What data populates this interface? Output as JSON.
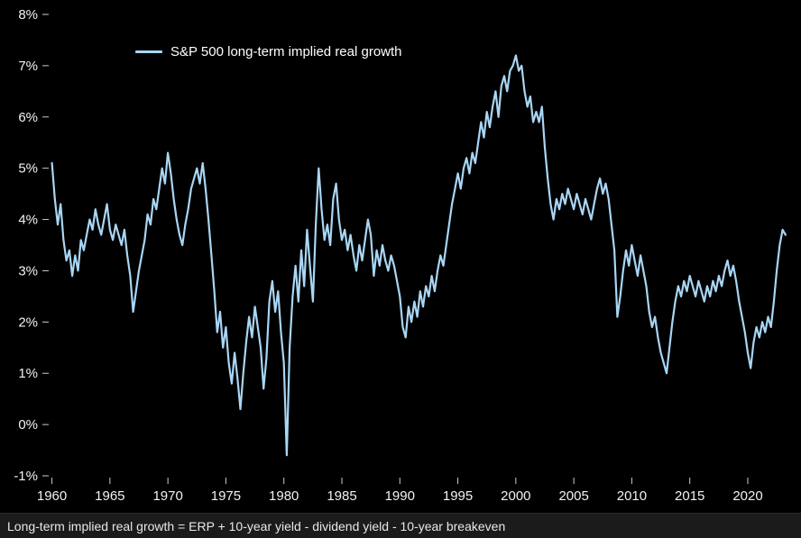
{
  "legend": {
    "label": "S&P 500 long-term implied real growth"
  },
  "footer": {
    "text": "Long-term implied real growth = ERP + 10-year yield - dividend yield - 10-year breakeven"
  },
  "chart_data": {
    "type": "line",
    "title": "",
    "xlabel": "",
    "ylabel": "",
    "legend_entries": [
      "S&P 500 long-term implied real growth"
    ],
    "legend_position": "top-left",
    "grid": false,
    "background": "#000000",
    "line_color": "#a9d6f5",
    "tick_color": "#cccccc",
    "xlim": [
      1959.8,
      2023.5
    ],
    "ylim": [
      -1,
      8
    ],
    "x_ticks": [
      1960,
      1965,
      1970,
      1975,
      1980,
      1985,
      1990,
      1995,
      2000,
      2005,
      2010,
      2015,
      2020
    ],
    "y_ticks": [
      {
        "value": 8,
        "label": "8%"
      },
      {
        "value": 7,
        "label": "7%"
      },
      {
        "value": 6,
        "label": "6%"
      },
      {
        "value": 5,
        "label": "5%"
      },
      {
        "value": 4,
        "label": "4%"
      },
      {
        "value": 3,
        "label": "3%"
      },
      {
        "value": 2,
        "label": "2%"
      },
      {
        "value": 1,
        "label": "1%"
      },
      {
        "value": 0,
        "label": "0%"
      },
      {
        "value": -1,
        "label": "-1%"
      }
    ],
    "series": [
      {
        "name": "S&P 500 long-term implied real growth",
        "points": [
          [
            1960.0,
            5.1
          ],
          [
            1960.25,
            4.4
          ],
          [
            1960.5,
            3.9
          ],
          [
            1960.75,
            4.3
          ],
          [
            1961.0,
            3.6
          ],
          [
            1961.25,
            3.2
          ],
          [
            1961.5,
            3.4
          ],
          [
            1961.75,
            2.9
          ],
          [
            1962.0,
            3.3
          ],
          [
            1962.25,
            3.0
          ],
          [
            1962.5,
            3.6
          ],
          [
            1962.75,
            3.4
          ],
          [
            1963.0,
            3.7
          ],
          [
            1963.25,
            4.0
          ],
          [
            1963.5,
            3.8
          ],
          [
            1963.75,
            4.2
          ],
          [
            1964.0,
            3.9
          ],
          [
            1964.25,
            3.7
          ],
          [
            1964.5,
            4.0
          ],
          [
            1964.75,
            4.3
          ],
          [
            1965.0,
            3.8
          ],
          [
            1965.25,
            3.6
          ],
          [
            1965.5,
            3.9
          ],
          [
            1965.75,
            3.7
          ],
          [
            1966.0,
            3.5
          ],
          [
            1966.25,
            3.8
          ],
          [
            1966.5,
            3.3
          ],
          [
            1966.75,
            2.9
          ],
          [
            1967.0,
            2.2
          ],
          [
            1967.25,
            2.6
          ],
          [
            1967.5,
            3.0
          ],
          [
            1967.75,
            3.3
          ],
          [
            1968.0,
            3.6
          ],
          [
            1968.25,
            4.1
          ],
          [
            1968.5,
            3.9
          ],
          [
            1968.75,
            4.4
          ],
          [
            1969.0,
            4.2
          ],
          [
            1969.25,
            4.6
          ],
          [
            1969.5,
            5.0
          ],
          [
            1969.75,
            4.7
          ],
          [
            1970.0,
            5.3
          ],
          [
            1970.25,
            4.9
          ],
          [
            1970.5,
            4.4
          ],
          [
            1970.75,
            4.0
          ],
          [
            1971.0,
            3.7
          ],
          [
            1971.25,
            3.5
          ],
          [
            1971.5,
            3.9
          ],
          [
            1971.75,
            4.2
          ],
          [
            1972.0,
            4.6
          ],
          [
            1972.25,
            4.8
          ],
          [
            1972.5,
            5.0
          ],
          [
            1972.75,
            4.7
          ],
          [
            1973.0,
            5.1
          ],
          [
            1973.25,
            4.6
          ],
          [
            1973.5,
            4.0
          ],
          [
            1973.75,
            3.3
          ],
          [
            1974.0,
            2.6
          ],
          [
            1974.25,
            1.8
          ],
          [
            1974.5,
            2.2
          ],
          [
            1974.75,
            1.5
          ],
          [
            1975.0,
            1.9
          ],
          [
            1975.25,
            1.2
          ],
          [
            1975.5,
            0.8
          ],
          [
            1975.75,
            1.4
          ],
          [
            1976.0,
            0.9
          ],
          [
            1976.25,
            0.3
          ],
          [
            1976.5,
            1.0
          ],
          [
            1976.75,
            1.6
          ],
          [
            1977.0,
            2.1
          ],
          [
            1977.25,
            1.7
          ],
          [
            1977.5,
            2.3
          ],
          [
            1977.75,
            1.9
          ],
          [
            1978.0,
            1.5
          ],
          [
            1978.25,
            0.7
          ],
          [
            1978.5,
            1.3
          ],
          [
            1978.75,
            2.4
          ],
          [
            1979.0,
            2.8
          ],
          [
            1979.25,
            2.2
          ],
          [
            1979.5,
            2.6
          ],
          [
            1979.75,
            1.8
          ],
          [
            1980.0,
            1.2
          ],
          [
            1980.25,
            -0.6
          ],
          [
            1980.5,
            1.5
          ],
          [
            1980.75,
            2.5
          ],
          [
            1981.0,
            3.1
          ],
          [
            1981.25,
            2.4
          ],
          [
            1981.5,
            3.4
          ],
          [
            1981.75,
            2.7
          ],
          [
            1982.0,
            3.8
          ],
          [
            1982.25,
            3.1
          ],
          [
            1982.5,
            2.4
          ],
          [
            1982.75,
            3.9
          ],
          [
            1983.0,
            5.0
          ],
          [
            1983.25,
            4.2
          ],
          [
            1983.5,
            3.6
          ],
          [
            1983.75,
            3.9
          ],
          [
            1984.0,
            3.5
          ],
          [
            1984.25,
            4.4
          ],
          [
            1984.5,
            4.7
          ],
          [
            1984.75,
            4.0
          ],
          [
            1985.0,
            3.6
          ],
          [
            1985.25,
            3.8
          ],
          [
            1985.5,
            3.4
          ],
          [
            1985.75,
            3.7
          ],
          [
            1986.0,
            3.3
          ],
          [
            1986.25,
            3.0
          ],
          [
            1986.5,
            3.5
          ],
          [
            1986.75,
            3.2
          ],
          [
            1987.0,
            3.6
          ],
          [
            1987.25,
            4.0
          ],
          [
            1987.5,
            3.7
          ],
          [
            1987.75,
            2.9
          ],
          [
            1988.0,
            3.4
          ],
          [
            1988.25,
            3.1
          ],
          [
            1988.5,
            3.5
          ],
          [
            1988.75,
            3.2
          ],
          [
            1989.0,
            3.0
          ],
          [
            1989.25,
            3.3
          ],
          [
            1989.5,
            3.1
          ],
          [
            1989.75,
            2.8
          ],
          [
            1990.0,
            2.5
          ],
          [
            1990.25,
            1.9
          ],
          [
            1990.5,
            1.7
          ],
          [
            1990.75,
            2.3
          ],
          [
            1991.0,
            2.0
          ],
          [
            1991.25,
            2.4
          ],
          [
            1991.5,
            2.1
          ],
          [
            1991.75,
            2.6
          ],
          [
            1992.0,
            2.3
          ],
          [
            1992.25,
            2.7
          ],
          [
            1992.5,
            2.5
          ],
          [
            1992.75,
            2.9
          ],
          [
            1993.0,
            2.6
          ],
          [
            1993.25,
            3.0
          ],
          [
            1993.5,
            3.3
          ],
          [
            1993.75,
            3.1
          ],
          [
            1994.0,
            3.5
          ],
          [
            1994.25,
            3.9
          ],
          [
            1994.5,
            4.3
          ],
          [
            1994.75,
            4.6
          ],
          [
            1995.0,
            4.9
          ],
          [
            1995.25,
            4.6
          ],
          [
            1995.5,
            5.0
          ],
          [
            1995.75,
            5.2
          ],
          [
            1996.0,
            4.9
          ],
          [
            1996.25,
            5.3
          ],
          [
            1996.5,
            5.1
          ],
          [
            1996.75,
            5.5
          ],
          [
            1997.0,
            5.9
          ],
          [
            1997.25,
            5.6
          ],
          [
            1997.5,
            6.1
          ],
          [
            1997.75,
            5.8
          ],
          [
            1998.0,
            6.2
          ],
          [
            1998.25,
            6.5
          ],
          [
            1998.5,
            6.0
          ],
          [
            1998.75,
            6.6
          ],
          [
            1999.0,
            6.8
          ],
          [
            1999.25,
            6.5
          ],
          [
            1999.5,
            6.9
          ],
          [
            1999.75,
            7.0
          ],
          [
            2000.0,
            7.2
          ],
          [
            2000.25,
            6.9
          ],
          [
            2000.5,
            7.0
          ],
          [
            2000.75,
            6.5
          ],
          [
            2001.0,
            6.2
          ],
          [
            2001.25,
            6.4
          ],
          [
            2001.5,
            5.9
          ],
          [
            2001.75,
            6.1
          ],
          [
            2002.0,
            5.9
          ],
          [
            2002.25,
            6.2
          ],
          [
            2002.5,
            5.4
          ],
          [
            2002.75,
            4.8
          ],
          [
            2003.0,
            4.3
          ],
          [
            2003.25,
            4.0
          ],
          [
            2003.5,
            4.4
          ],
          [
            2003.75,
            4.2
          ],
          [
            2004.0,
            4.5
          ],
          [
            2004.25,
            4.3
          ],
          [
            2004.5,
            4.6
          ],
          [
            2004.75,
            4.4
          ],
          [
            2005.0,
            4.2
          ],
          [
            2005.25,
            4.5
          ],
          [
            2005.5,
            4.3
          ],
          [
            2005.75,
            4.1
          ],
          [
            2006.0,
            4.4
          ],
          [
            2006.25,
            4.2
          ],
          [
            2006.5,
            4.0
          ],
          [
            2006.75,
            4.3
          ],
          [
            2007.0,
            4.6
          ],
          [
            2007.25,
            4.8
          ],
          [
            2007.5,
            4.5
          ],
          [
            2007.75,
            4.7
          ],
          [
            2008.0,
            4.4
          ],
          [
            2008.25,
            3.9
          ],
          [
            2008.5,
            3.4
          ],
          [
            2008.75,
            2.1
          ],
          [
            2009.0,
            2.5
          ],
          [
            2009.25,
            3.0
          ],
          [
            2009.5,
            3.4
          ],
          [
            2009.75,
            3.1
          ],
          [
            2010.0,
            3.5
          ],
          [
            2010.25,
            3.2
          ],
          [
            2010.5,
            2.9
          ],
          [
            2010.75,
            3.3
          ],
          [
            2011.0,
            3.0
          ],
          [
            2011.25,
            2.7
          ],
          [
            2011.5,
            2.2
          ],
          [
            2011.75,
            1.9
          ],
          [
            2012.0,
            2.1
          ],
          [
            2012.25,
            1.7
          ],
          [
            2012.5,
            1.4
          ],
          [
            2012.75,
            1.2
          ],
          [
            2013.0,
            1.0
          ],
          [
            2013.25,
            1.5
          ],
          [
            2013.5,
            2.0
          ],
          [
            2013.75,
            2.4
          ],
          [
            2014.0,
            2.7
          ],
          [
            2014.25,
            2.5
          ],
          [
            2014.5,
            2.8
          ],
          [
            2014.75,
            2.6
          ],
          [
            2015.0,
            2.9
          ],
          [
            2015.25,
            2.7
          ],
          [
            2015.5,
            2.5
          ],
          [
            2015.75,
            2.8
          ],
          [
            2016.0,
            2.6
          ],
          [
            2016.25,
            2.4
          ],
          [
            2016.5,
            2.7
          ],
          [
            2016.75,
            2.5
          ],
          [
            2017.0,
            2.8
          ],
          [
            2017.25,
            2.6
          ],
          [
            2017.5,
            2.9
          ],
          [
            2017.75,
            2.7
          ],
          [
            2018.0,
            3.0
          ],
          [
            2018.25,
            3.2
          ],
          [
            2018.5,
            2.9
          ],
          [
            2018.75,
            3.1
          ],
          [
            2019.0,
            2.8
          ],
          [
            2019.25,
            2.4
          ],
          [
            2019.5,
            2.1
          ],
          [
            2019.75,
            1.8
          ],
          [
            2020.0,
            1.4
          ],
          [
            2020.25,
            1.1
          ],
          [
            2020.5,
            1.6
          ],
          [
            2020.75,
            1.9
          ],
          [
            2021.0,
            1.7
          ],
          [
            2021.25,
            2.0
          ],
          [
            2021.5,
            1.8
          ],
          [
            2021.75,
            2.1
          ],
          [
            2022.0,
            1.9
          ],
          [
            2022.25,
            2.4
          ],
          [
            2022.5,
            3.0
          ],
          [
            2022.75,
            3.5
          ],
          [
            2023.0,
            3.8
          ],
          [
            2023.25,
            3.7
          ]
        ]
      }
    ]
  }
}
